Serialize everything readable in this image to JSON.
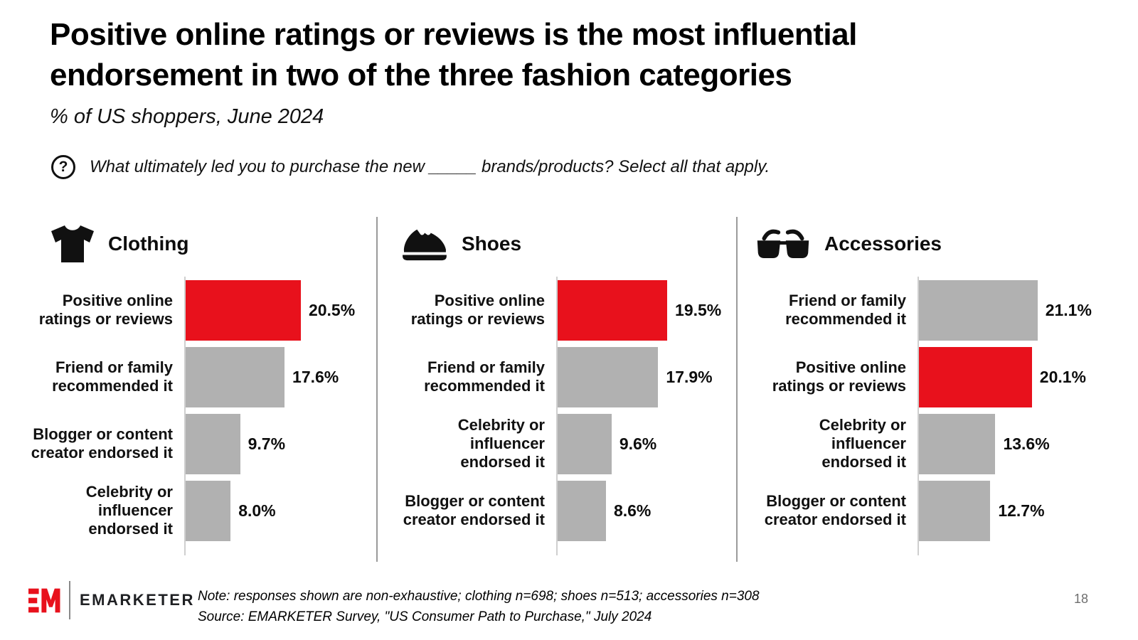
{
  "header": {
    "title": "Positive online ratings or reviews is the most influential\nendorsement in two of the three fashion categories",
    "subtitle": "% of US shoppers, June 2024",
    "question_icon_glyph": "?",
    "question": "What ultimately led you to purchase the new _____ brands/products? Select all that apply."
  },
  "chart_data": [
    {
      "type": "bar",
      "orientation": "horizontal",
      "title": "Clothing",
      "icon": "tshirt-icon",
      "unit": "%",
      "categories": [
        "Positive online\nratings or reviews",
        "Friend or family\nrecommended it",
        "Blogger or content\ncreator endorsed it",
        "Celebrity or\ninfluencer\nendorsed it"
      ],
      "values": [
        20.5,
        17.6,
        9.7,
        8.0
      ],
      "bar_colors": [
        "#e8111c",
        "#b1b1b1",
        "#b1b1b1",
        "#b1b1b1"
      ],
      "highlight_category": "Positive online ratings or reviews",
      "xlim": [
        0,
        25
      ],
      "grid": false,
      "value_labels": true
    },
    {
      "type": "bar",
      "orientation": "horizontal",
      "title": "Shoes",
      "icon": "sneaker-icon",
      "unit": "%",
      "categories": [
        "Positive online\nratings or reviews",
        "Friend or family\nrecommended it",
        "Celebrity or\ninfluencer\nendorsed it",
        "Blogger or content\ncreator endorsed it"
      ],
      "values": [
        19.5,
        17.9,
        9.6,
        8.6
      ],
      "bar_colors": [
        "#e8111c",
        "#b1b1b1",
        "#b1b1b1",
        "#b1b1b1"
      ],
      "highlight_category": "Positive online ratings or reviews",
      "xlim": [
        0,
        25
      ],
      "grid": false,
      "value_labels": true
    },
    {
      "type": "bar",
      "orientation": "horizontal",
      "title": "Accessories",
      "icon": "sunglasses-icon",
      "unit": "%",
      "categories": [
        "Friend or family\nrecommended it",
        "Positive online\nratings or reviews",
        "Celebrity or\ninfluencer\nendorsed it",
        "Blogger or content\ncreator endorsed it"
      ],
      "values": [
        21.1,
        20.1,
        13.6,
        12.7
      ],
      "bar_colors": [
        "#b1b1b1",
        "#e8111c",
        "#b1b1b1",
        "#b1b1b1"
      ],
      "highlight_category": "Positive online ratings or reviews",
      "xlim": [
        0,
        25
      ],
      "grid": false,
      "value_labels": true
    }
  ],
  "colors": {
    "highlight_red": "#e8111c",
    "bar_gray": "#b1b1b1",
    "axis_gray": "#cfcfcf",
    "divider_gray": "#9a9a9a"
  },
  "footer": {
    "logo_mark": "EM",
    "logo_text": "EMARKETER",
    "note": "Note: responses shown are non-exhaustive; clothing n=698; shoes n=513; accessories n=308",
    "source": "Source: EMARKETER Survey, \"US Consumer Path to Purchase,\" July 2024",
    "page_number": "18"
  }
}
